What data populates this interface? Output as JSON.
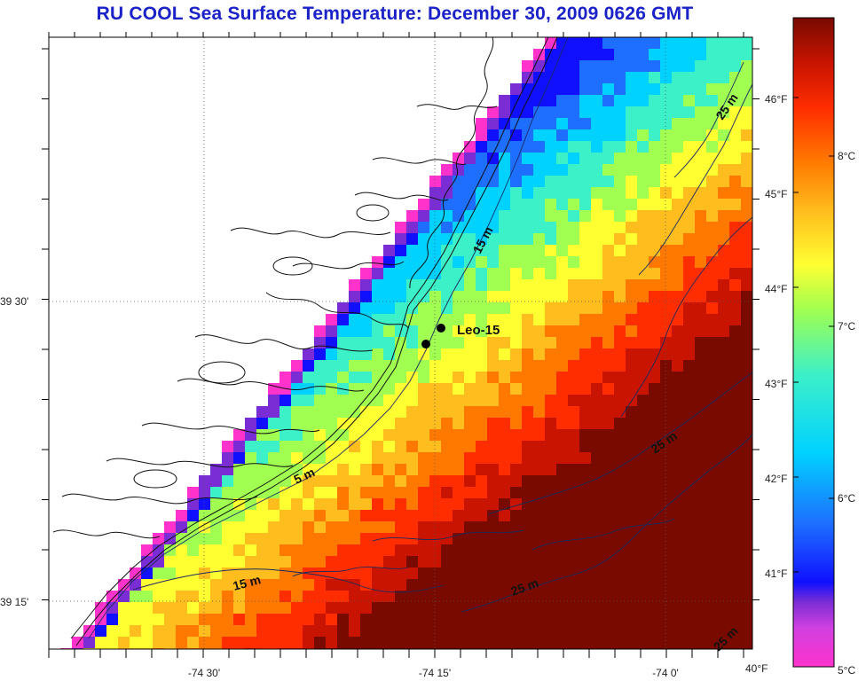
{
  "title": "RU COOL  Sea Surface Temperature:  December 30, 2009 0626 GMT",
  "map": {
    "lon_ticks": [
      "-74 30'",
      "-74 15'",
      "-74 0'"
    ],
    "lat_ticks": [
      "39 30'",
      "39 15'"
    ],
    "station": {
      "name": "Leo-15"
    },
    "contours": [
      "5 m",
      "15 m",
      "15 m",
      "25 m",
      "25 m",
      "25 m",
      "25 m",
      "25 m"
    ]
  },
  "colorbar": {
    "fahrenheit_labels": [
      "40°F",
      "41°F",
      "42°F",
      "43°F",
      "44°F",
      "45°F",
      "46°F"
    ],
    "celsius_labels": [
      "5°C",
      "6°C",
      "7°C",
      "8°C"
    ],
    "colors": [
      "#ff33cc",
      "#7a2dd4",
      "#1010ff",
      "#1e6eff",
      "#00d2ff",
      "#3cf0c8",
      "#a0ff50",
      "#ffff32",
      "#ffbe1e",
      "#ff7800",
      "#ff2d00",
      "#c81400",
      "#780a00"
    ]
  }
}
